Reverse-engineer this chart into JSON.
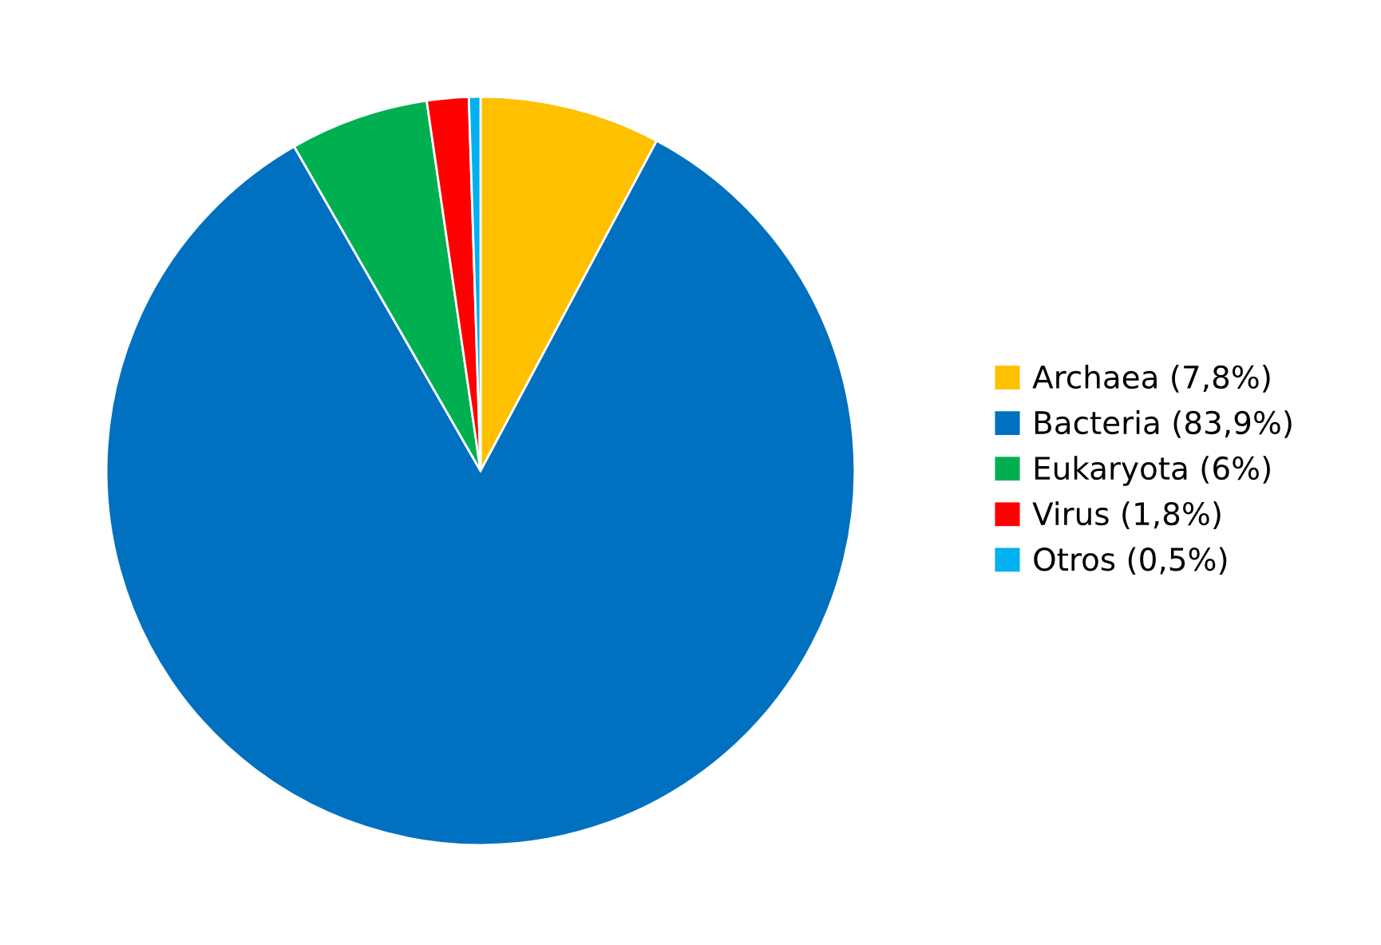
{
  "chart_data": {
    "type": "pie",
    "categories": [
      "Archaea (7,8%)",
      "Bacteria (83,9%)",
      "Eukaryota (6%)",
      "Virus (1,8%)",
      "Otros (0,5%)"
    ],
    "values": [
      7.8,
      83.9,
      6,
      1.8,
      0.5
    ],
    "colors": [
      "#ffc000",
      "#0070c0",
      "#00b050",
      "#ff0000",
      "#00b0f0"
    ],
    "legend": "right"
  }
}
